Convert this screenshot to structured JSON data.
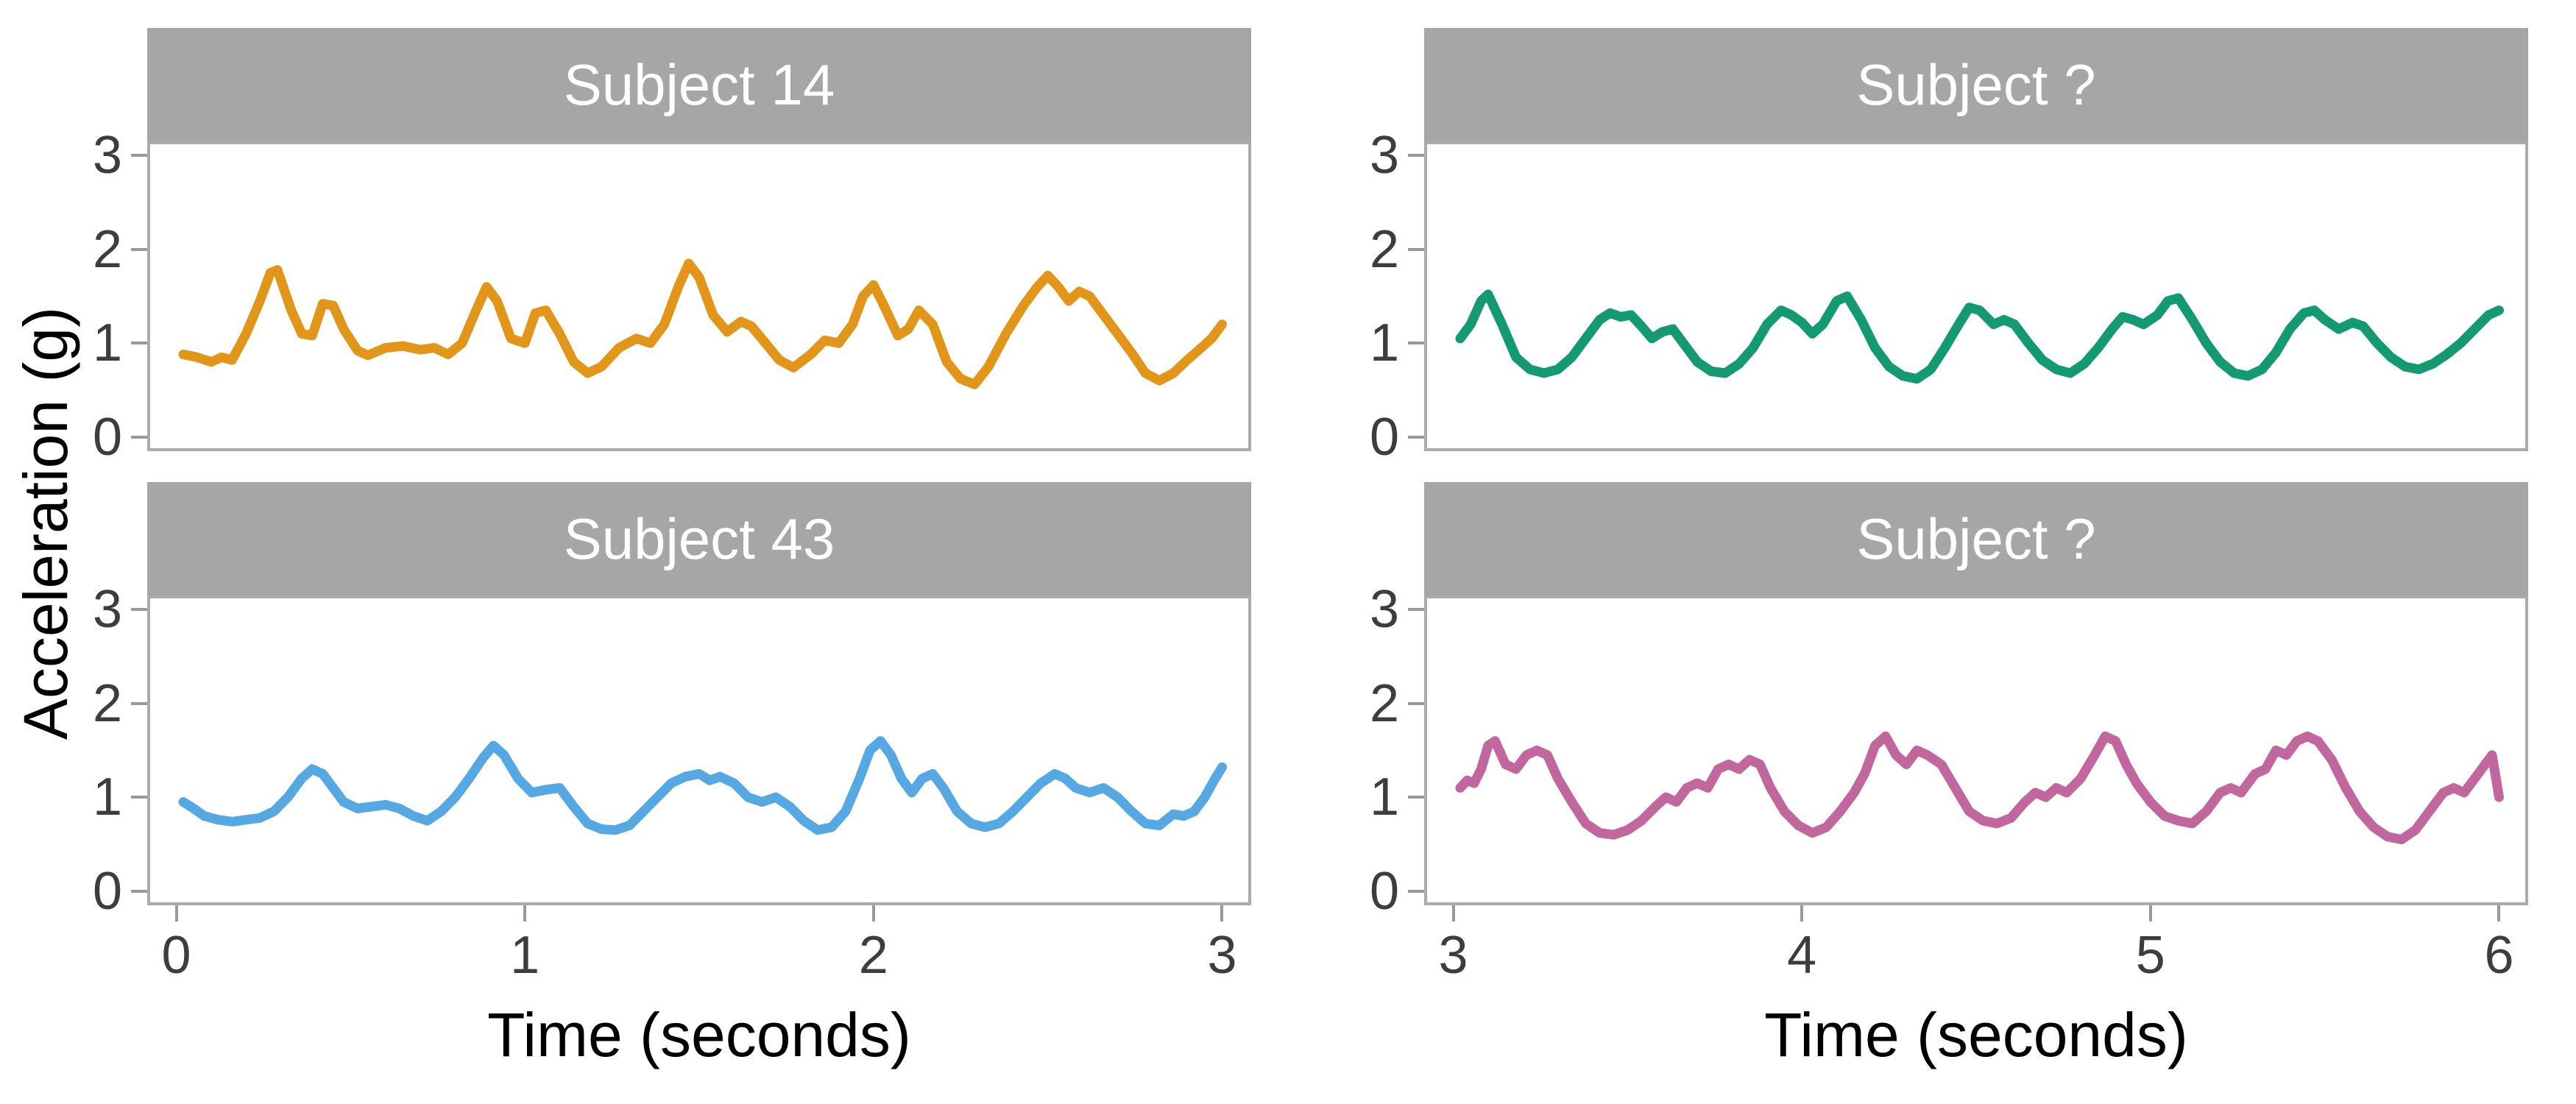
{
  "axes": {
    "x_title": "Time (seconds)",
    "y_title": "Acceleration (g)",
    "y_ticks": [
      0,
      1,
      2,
      3
    ],
    "y_limits": [
      -0.12,
      3.12
    ]
  },
  "style": {
    "strip_background": "#A6A6A6",
    "strip_text_color": "#FFFFFF",
    "panel_border": "#ABABAB",
    "tick_color": "#999999",
    "tick_label_color": "#3d3d3d",
    "panel_background": "#FFFFFF"
  },
  "chart_data": [
    {
      "type": "line",
      "position": "top-left",
      "strip_label": "Subject 14",
      "color": "#E29619",
      "x_domain": [
        0,
        3
      ],
      "x_ticks": [
        0,
        1,
        2,
        3
      ],
      "show_x_axis": false,
      "points": [
        [
          0.02,
          0.88
        ],
        [
          0.06,
          0.85
        ],
        [
          0.1,
          0.8
        ],
        [
          0.13,
          0.85
        ],
        [
          0.16,
          0.82
        ],
        [
          0.2,
          1.1
        ],
        [
          0.24,
          1.45
        ],
        [
          0.27,
          1.75
        ],
        [
          0.29,
          1.78
        ],
        [
          0.33,
          1.35
        ],
        [
          0.36,
          1.1
        ],
        [
          0.39,
          1.08
        ],
        [
          0.42,
          1.42
        ],
        [
          0.45,
          1.4
        ],
        [
          0.48,
          1.15
        ],
        [
          0.52,
          0.92
        ],
        [
          0.55,
          0.87
        ],
        [
          0.6,
          0.95
        ],
        [
          0.65,
          0.97
        ],
        [
          0.7,
          0.93
        ],
        [
          0.74,
          0.95
        ],
        [
          0.78,
          0.88
        ],
        [
          0.82,
          1.0
        ],
        [
          0.86,
          1.35
        ],
        [
          0.89,
          1.6
        ],
        [
          0.92,
          1.45
        ],
        [
          0.96,
          1.05
        ],
        [
          1.0,
          1.0
        ],
        [
          1.03,
          1.32
        ],
        [
          1.06,
          1.35
        ],
        [
          1.1,
          1.1
        ],
        [
          1.14,
          0.8
        ],
        [
          1.18,
          0.68
        ],
        [
          1.22,
          0.75
        ],
        [
          1.27,
          0.95
        ],
        [
          1.32,
          1.05
        ],
        [
          1.36,
          1.0
        ],
        [
          1.4,
          1.2
        ],
        [
          1.44,
          1.6
        ],
        [
          1.47,
          1.85
        ],
        [
          1.5,
          1.7
        ],
        [
          1.54,
          1.3
        ],
        [
          1.58,
          1.12
        ],
        [
          1.62,
          1.23
        ],
        [
          1.65,
          1.18
        ],
        [
          1.69,
          1.0
        ],
        [
          1.73,
          0.82
        ],
        [
          1.77,
          0.74
        ],
        [
          1.82,
          0.88
        ],
        [
          1.86,
          1.03
        ],
        [
          1.9,
          1.0
        ],
        [
          1.94,
          1.2
        ],
        [
          1.97,
          1.5
        ],
        [
          2.0,
          1.62
        ],
        [
          2.03,
          1.4
        ],
        [
          2.07,
          1.08
        ],
        [
          2.1,
          1.15
        ],
        [
          2.13,
          1.35
        ],
        [
          2.17,
          1.2
        ],
        [
          2.21,
          0.8
        ],
        [
          2.25,
          0.62
        ],
        [
          2.29,
          0.56
        ],
        [
          2.33,
          0.75
        ],
        [
          2.38,
          1.1
        ],
        [
          2.43,
          1.4
        ],
        [
          2.47,
          1.6
        ],
        [
          2.5,
          1.72
        ],
        [
          2.53,
          1.6
        ],
        [
          2.56,
          1.45
        ],
        [
          2.59,
          1.55
        ],
        [
          2.62,
          1.5
        ],
        [
          2.66,
          1.3
        ],
        [
          2.7,
          1.1
        ],
        [
          2.74,
          0.9
        ],
        [
          2.78,
          0.68
        ],
        [
          2.82,
          0.6
        ],
        [
          2.86,
          0.68
        ],
        [
          2.9,
          0.82
        ],
        [
          2.94,
          0.95
        ],
        [
          2.97,
          1.05
        ],
        [
          3.0,
          1.2
        ]
      ]
    },
    {
      "type": "line",
      "position": "top-right",
      "strip_label": "Subject ?",
      "color": "#149A72",
      "x_domain": [
        3,
        6
      ],
      "x_ticks": [
        3,
        4,
        5,
        6
      ],
      "show_x_axis": false,
      "points": [
        [
          3.02,
          1.05
        ],
        [
          3.05,
          1.2
        ],
        [
          3.08,
          1.45
        ],
        [
          3.1,
          1.52
        ],
        [
          3.14,
          1.2
        ],
        [
          3.18,
          0.85
        ],
        [
          3.22,
          0.72
        ],
        [
          3.26,
          0.68
        ],
        [
          3.3,
          0.72
        ],
        [
          3.34,
          0.85
        ],
        [
          3.38,
          1.05
        ],
        [
          3.42,
          1.25
        ],
        [
          3.45,
          1.32
        ],
        [
          3.48,
          1.28
        ],
        [
          3.51,
          1.3
        ],
        [
          3.54,
          1.18
        ],
        [
          3.57,
          1.05
        ],
        [
          3.6,
          1.12
        ],
        [
          3.63,
          1.15
        ],
        [
          3.66,
          1.0
        ],
        [
          3.7,
          0.8
        ],
        [
          3.74,
          0.7
        ],
        [
          3.78,
          0.68
        ],
        [
          3.82,
          0.78
        ],
        [
          3.86,
          0.95
        ],
        [
          3.9,
          1.2
        ],
        [
          3.94,
          1.35
        ],
        [
          3.97,
          1.3
        ],
        [
          4.0,
          1.22
        ],
        [
          4.03,
          1.1
        ],
        [
          4.06,
          1.2
        ],
        [
          4.1,
          1.45
        ],
        [
          4.13,
          1.5
        ],
        [
          4.17,
          1.25
        ],
        [
          4.21,
          0.95
        ],
        [
          4.25,
          0.75
        ],
        [
          4.29,
          0.65
        ],
        [
          4.33,
          0.62
        ],
        [
          4.37,
          0.72
        ],
        [
          4.41,
          0.95
        ],
        [
          4.45,
          1.2
        ],
        [
          4.48,
          1.38
        ],
        [
          4.51,
          1.35
        ],
        [
          4.55,
          1.2
        ],
        [
          4.58,
          1.25
        ],
        [
          4.61,
          1.2
        ],
        [
          4.65,
          1.0
        ],
        [
          4.69,
          0.82
        ],
        [
          4.73,
          0.72
        ],
        [
          4.77,
          0.68
        ],
        [
          4.81,
          0.78
        ],
        [
          4.85,
          0.95
        ],
        [
          4.89,
          1.15
        ],
        [
          4.92,
          1.28
        ],
        [
          4.95,
          1.25
        ],
        [
          4.98,
          1.2
        ],
        [
          5.02,
          1.3
        ],
        [
          5.05,
          1.45
        ],
        [
          5.08,
          1.48
        ],
        [
          5.12,
          1.25
        ],
        [
          5.16,
          1.0
        ],
        [
          5.2,
          0.8
        ],
        [
          5.24,
          0.68
        ],
        [
          5.28,
          0.65
        ],
        [
          5.32,
          0.72
        ],
        [
          5.36,
          0.9
        ],
        [
          5.4,
          1.15
        ],
        [
          5.44,
          1.32
        ],
        [
          5.47,
          1.35
        ],
        [
          5.5,
          1.25
        ],
        [
          5.54,
          1.15
        ],
        [
          5.58,
          1.22
        ],
        [
          5.61,
          1.18
        ],
        [
          5.65,
          1.0
        ],
        [
          5.69,
          0.85
        ],
        [
          5.73,
          0.75
        ],
        [
          5.77,
          0.72
        ],
        [
          5.81,
          0.78
        ],
        [
          5.85,
          0.88
        ],
        [
          5.89,
          1.0
        ],
        [
          5.93,
          1.15
        ],
        [
          5.97,
          1.3
        ],
        [
          6.0,
          1.35
        ]
      ]
    },
    {
      "type": "line",
      "position": "bottom-left",
      "strip_label": "Subject 43",
      "color": "#55A8E2",
      "x_domain": [
        0,
        3
      ],
      "x_ticks": [
        0,
        1,
        2,
        3
      ],
      "show_x_axis": true,
      "points": [
        [
          0.02,
          0.95
        ],
        [
          0.05,
          0.88
        ],
        [
          0.08,
          0.8
        ],
        [
          0.12,
          0.76
        ],
        [
          0.16,
          0.74
        ],
        [
          0.2,
          0.76
        ],
        [
          0.24,
          0.78
        ],
        [
          0.28,
          0.85
        ],
        [
          0.32,
          1.0
        ],
        [
          0.36,
          1.2
        ],
        [
          0.39,
          1.3
        ],
        [
          0.42,
          1.25
        ],
        [
          0.45,
          1.1
        ],
        [
          0.48,
          0.95
        ],
        [
          0.52,
          0.88
        ],
        [
          0.56,
          0.9
        ],
        [
          0.6,
          0.92
        ],
        [
          0.64,
          0.88
        ],
        [
          0.68,
          0.8
        ],
        [
          0.72,
          0.75
        ],
        [
          0.76,
          0.85
        ],
        [
          0.8,
          1.0
        ],
        [
          0.84,
          1.2
        ],
        [
          0.88,
          1.42
        ],
        [
          0.91,
          1.55
        ],
        [
          0.94,
          1.45
        ],
        [
          0.98,
          1.2
        ],
        [
          1.02,
          1.05
        ],
        [
          1.06,
          1.08
        ],
        [
          1.1,
          1.1
        ],
        [
          1.14,
          0.9
        ],
        [
          1.18,
          0.72
        ],
        [
          1.22,
          0.66
        ],
        [
          1.26,
          0.65
        ],
        [
          1.3,
          0.7
        ],
        [
          1.34,
          0.85
        ],
        [
          1.38,
          1.0
        ],
        [
          1.42,
          1.15
        ],
        [
          1.46,
          1.22
        ],
        [
          1.5,
          1.25
        ],
        [
          1.53,
          1.18
        ],
        [
          1.56,
          1.22
        ],
        [
          1.6,
          1.15
        ],
        [
          1.64,
          1.0
        ],
        [
          1.68,
          0.95
        ],
        [
          1.72,
          1.0
        ],
        [
          1.76,
          0.9
        ],
        [
          1.8,
          0.75
        ],
        [
          1.84,
          0.65
        ],
        [
          1.88,
          0.68
        ],
        [
          1.92,
          0.85
        ],
        [
          1.96,
          1.2
        ],
        [
          1.99,
          1.5
        ],
        [
          2.02,
          1.6
        ],
        [
          2.05,
          1.45
        ],
        [
          2.08,
          1.2
        ],
        [
          2.11,
          1.05
        ],
        [
          2.14,
          1.2
        ],
        [
          2.17,
          1.25
        ],
        [
          2.2,
          1.1
        ],
        [
          2.24,
          0.85
        ],
        [
          2.28,
          0.72
        ],
        [
          2.32,
          0.68
        ],
        [
          2.36,
          0.72
        ],
        [
          2.4,
          0.85
        ],
        [
          2.44,
          1.0
        ],
        [
          2.48,
          1.15
        ],
        [
          2.52,
          1.25
        ],
        [
          2.55,
          1.2
        ],
        [
          2.58,
          1.1
        ],
        [
          2.62,
          1.05
        ],
        [
          2.66,
          1.1
        ],
        [
          2.7,
          1.0
        ],
        [
          2.74,
          0.85
        ],
        [
          2.78,
          0.72
        ],
        [
          2.82,
          0.7
        ],
        [
          2.86,
          0.82
        ],
        [
          2.89,
          0.8
        ],
        [
          2.92,
          0.85
        ],
        [
          2.95,
          1.0
        ],
        [
          2.98,
          1.2
        ],
        [
          3.0,
          1.32
        ]
      ]
    },
    {
      "type": "line",
      "position": "bottom-right",
      "strip_label": "Subject ?",
      "color": "#C1679D",
      "x_domain": [
        3,
        6
      ],
      "x_ticks": [
        3,
        4,
        5,
        6
      ],
      "show_x_axis": true,
      "points": [
        [
          3.02,
          1.1
        ],
        [
          3.04,
          1.18
        ],
        [
          3.06,
          1.15
        ],
        [
          3.08,
          1.3
        ],
        [
          3.1,
          1.55
        ],
        [
          3.12,
          1.6
        ],
        [
          3.15,
          1.35
        ],
        [
          3.18,
          1.3
        ],
        [
          3.21,
          1.45
        ],
        [
          3.24,
          1.5
        ],
        [
          3.27,
          1.45
        ],
        [
          3.3,
          1.2
        ],
        [
          3.34,
          0.95
        ],
        [
          3.38,
          0.72
        ],
        [
          3.42,
          0.62
        ],
        [
          3.46,
          0.6
        ],
        [
          3.5,
          0.65
        ],
        [
          3.54,
          0.75
        ],
        [
          3.58,
          0.9
        ],
        [
          3.61,
          1.0
        ],
        [
          3.64,
          0.95
        ],
        [
          3.67,
          1.1
        ],
        [
          3.7,
          1.15
        ],
        [
          3.73,
          1.1
        ],
        [
          3.76,
          1.3
        ],
        [
          3.79,
          1.35
        ],
        [
          3.82,
          1.3
        ],
        [
          3.85,
          1.4
        ],
        [
          3.88,
          1.35
        ],
        [
          3.91,
          1.1
        ],
        [
          3.95,
          0.85
        ],
        [
          3.99,
          0.7
        ],
        [
          4.03,
          0.62
        ],
        [
          4.07,
          0.68
        ],
        [
          4.11,
          0.85
        ],
        [
          4.15,
          1.05
        ],
        [
          4.18,
          1.25
        ],
        [
          4.21,
          1.55
        ],
        [
          4.24,
          1.65
        ],
        [
          4.27,
          1.45
        ],
        [
          4.3,
          1.35
        ],
        [
          4.33,
          1.5
        ],
        [
          4.36,
          1.45
        ],
        [
          4.4,
          1.35
        ],
        [
          4.44,
          1.1
        ],
        [
          4.48,
          0.85
        ],
        [
          4.52,
          0.75
        ],
        [
          4.56,
          0.72
        ],
        [
          4.6,
          0.78
        ],
        [
          4.64,
          0.95
        ],
        [
          4.67,
          1.05
        ],
        [
          4.7,
          1.0
        ],
        [
          4.73,
          1.1
        ],
        [
          4.76,
          1.05
        ],
        [
          4.8,
          1.2
        ],
        [
          4.84,
          1.45
        ],
        [
          4.87,
          1.65
        ],
        [
          4.9,
          1.6
        ],
        [
          4.93,
          1.35
        ],
        [
          4.96,
          1.15
        ],
        [
          5.0,
          0.95
        ],
        [
          5.04,
          0.8
        ],
        [
          5.08,
          0.75
        ],
        [
          5.12,
          0.72
        ],
        [
          5.16,
          0.85
        ],
        [
          5.2,
          1.05
        ],
        [
          5.23,
          1.1
        ],
        [
          5.26,
          1.05
        ],
        [
          5.3,
          1.25
        ],
        [
          5.33,
          1.3
        ],
        [
          5.36,
          1.5
        ],
        [
          5.39,
          1.45
        ],
        [
          5.42,
          1.6
        ],
        [
          5.45,
          1.65
        ],
        [
          5.48,
          1.6
        ],
        [
          5.52,
          1.4
        ],
        [
          5.56,
          1.1
        ],
        [
          5.6,
          0.85
        ],
        [
          5.64,
          0.68
        ],
        [
          5.68,
          0.58
        ],
        [
          5.72,
          0.55
        ],
        [
          5.76,
          0.65
        ],
        [
          5.8,
          0.85
        ],
        [
          5.84,
          1.05
        ],
        [
          5.87,
          1.1
        ],
        [
          5.9,
          1.05
        ],
        [
          5.93,
          1.2
        ],
        [
          5.96,
          1.35
        ],
        [
          5.98,
          1.45
        ],
        [
          6.0,
          1.0
        ]
      ]
    }
  ]
}
